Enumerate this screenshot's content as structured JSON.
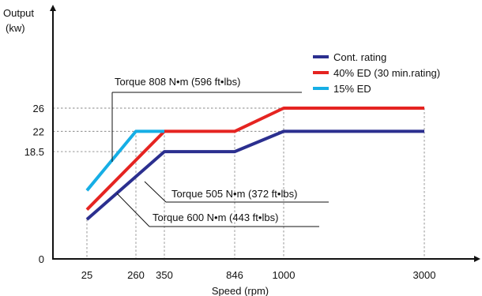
{
  "chart_data": {
    "type": "line",
    "ylabel_line1": "Output",
    "ylabel_line2": "(kw)",
    "xlabel": "Speed (rpm)",
    "x_ticks": [
      "25",
      "260",
      "350",
      "846",
      "1000",
      "3000"
    ],
    "y_ticks": [
      "0",
      "18.5",
      "22",
      "26"
    ],
    "grid": "dashed reference lines",
    "legend_position": "top-right",
    "series": [
      {
        "name": "Cont. rating",
        "color": "#2b2f8f",
        "points": [
          {
            "x": "25",
            "y": 6.8
          },
          {
            "x": "350",
            "y": 18.5
          },
          {
            "x": "846",
            "y": 18.5
          },
          {
            "x": "1000",
            "y": 22
          },
          {
            "x": "3000",
            "y": 22
          }
        ]
      },
      {
        "name": "40% ED (30 min.rating)",
        "color": "#e52421",
        "points": [
          {
            "x": "25",
            "y": 8.5
          },
          {
            "x": "350",
            "y": 22
          },
          {
            "x": "846",
            "y": 22
          },
          {
            "x": "1000",
            "y": 26
          },
          {
            "x": "3000",
            "y": 26
          }
        ]
      },
      {
        "name": "15% ED",
        "color": "#16aee5",
        "points": [
          {
            "x": "25",
            "y": 11.8
          },
          {
            "x": "260",
            "y": 22
          },
          {
            "x": "350",
            "y": 22
          }
        ]
      }
    ],
    "annotations": [
      {
        "text": "Torque 808 N•m (596 ft•lbs)",
        "target_series": "15% ED"
      },
      {
        "text": "Torque 505 N•m (372 ft•lbs)",
        "target_series": "Cont. rating"
      },
      {
        "text": "Torque 600 N•m (443 ft•lbs)",
        "target_series": "40% ED (30 min.rating)"
      }
    ]
  }
}
